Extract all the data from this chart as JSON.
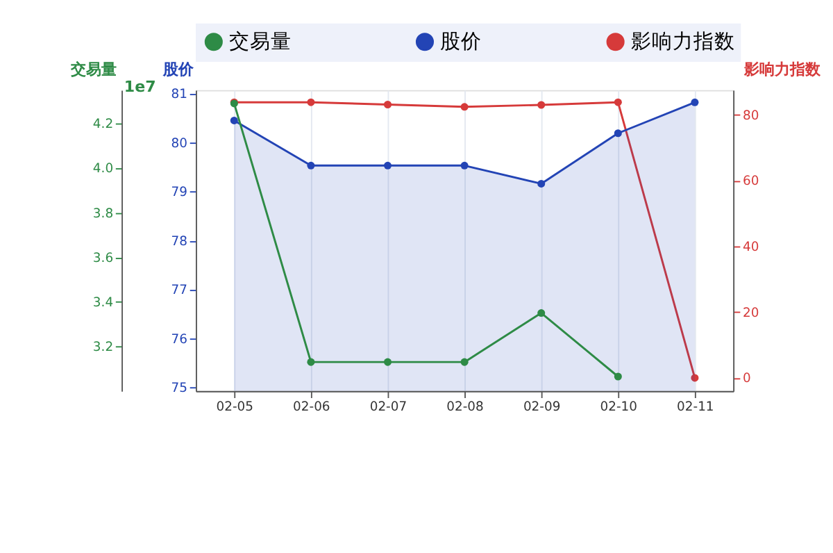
{
  "chart_data": {
    "type": "line",
    "categories": [
      "02-05",
      "02-06",
      "02-07",
      "02-08",
      "02-09",
      "02-10",
      "02-11"
    ],
    "series": [
      {
        "name": "交易量",
        "color": "#2e8b46",
        "axis": "y",
        "values": [
          4.29,
          3.13,
          3.13,
          3.13,
          3.35,
          3.065,
          null
        ]
      },
      {
        "name": "股价",
        "color": "#2344b5",
        "axis": "y2",
        "type": "area",
        "values": [
          80.45,
          79.53,
          79.53,
          79.53,
          79.16,
          80.19,
          80.82
        ]
      },
      {
        "name": "影响力指数",
        "color": "#d63a3a",
        "axis": "y3",
        "values": [
          83.8,
          83.8,
          83.1,
          82.4,
          83.0,
          83.8,
          0
        ]
      }
    ],
    "ylabel": "交易量",
    "ylim": [
      3.0,
      4.35
    ],
    "yticks": [
      {
        "value": 3.2,
        "label": "3.2"
      },
      {
        "value": 3.4,
        "label": "3.4"
      },
      {
        "value": 3.6,
        "label": "3.6"
      },
      {
        "value": 3.8,
        "label": "3.8"
      },
      {
        "value": 4.0,
        "label": "4.0"
      },
      {
        "value": 4.2,
        "label": "4.2"
      }
    ],
    "y2label": "股价",
    "y2lim": [
      74.93,
      81.07
    ],
    "y2ticks": [
      75,
      76,
      77,
      78,
      79,
      80,
      81
    ],
    "y3label": "影响力指数",
    "y3lim": [
      -4,
      87.5
    ],
    "y3ticks": [
      0,
      20,
      40,
      60,
      80
    ],
    "annotations": [
      "1e7"
    ],
    "marker": "circle",
    "grid": "x",
    "legend": "top"
  }
}
